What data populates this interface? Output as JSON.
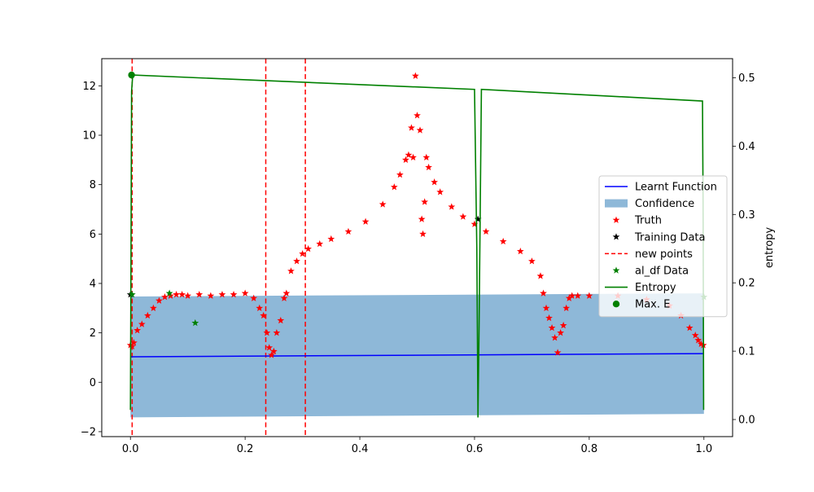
{
  "chart_data": {
    "type": "scatter",
    "title": "",
    "xlabel": "",
    "ylabel_left": "",
    "ylabel_right": "entropy",
    "xlim": [
      -0.05,
      1.05
    ],
    "ylim_left": [
      -2.2,
      13.1
    ],
    "ylim_right": [
      -0.025,
      0.528
    ],
    "x_ticks": [
      0.0,
      0.2,
      0.4,
      0.6,
      0.8,
      1.0
    ],
    "x_tick_labels": [
      "0.0",
      "0.2",
      "0.4",
      "0.6",
      "0.8",
      "1.0"
    ],
    "y_left_ticks": [
      -2,
      0,
      2,
      4,
      6,
      8,
      10,
      12
    ],
    "y_left_tick_labels": [
      "−2",
      "0",
      "2",
      "4",
      "6",
      "8",
      "10",
      "12"
    ],
    "y_right_ticks": [
      0.0,
      0.1,
      0.2,
      0.3,
      0.4,
      0.5
    ],
    "y_right_tick_labels": [
      "0.0",
      "0.1",
      "0.2",
      "0.3",
      "0.4",
      "0.5"
    ],
    "grid": false,
    "legend_position": "center-right",
    "colors": {
      "learnt": "#0000ff",
      "confidence": "#8eb8d8",
      "truth": "#ff0000",
      "training": "#000000",
      "new_points": "#ff0000",
      "al_df": "#008000",
      "entropy": "#008000",
      "max_e": "#008000"
    },
    "legend": [
      {
        "key": "learnt",
        "label": "Learnt Function",
        "marker": "line"
      },
      {
        "key": "confidence",
        "label": "Confidence",
        "marker": "patch"
      },
      {
        "key": "truth",
        "label": "Truth",
        "marker": "star"
      },
      {
        "key": "training",
        "label": "Training Data",
        "marker": "star"
      },
      {
        "key": "new_points",
        "label": "new points",
        "marker": "dashed"
      },
      {
        "key": "al_df",
        "label": "al_df Data",
        "marker": "star"
      },
      {
        "key": "entropy",
        "label": "Entropy",
        "marker": "line"
      },
      {
        "key": "max_e",
        "label": "Max. E",
        "marker": "dot"
      }
    ],
    "learnt_function": {
      "x": [
        0.0,
        1.0
      ],
      "y": [
        1.03,
        1.16
      ]
    },
    "confidence_band": {
      "x": [
        0.0,
        1.0
      ],
      "upper": [
        3.47,
        3.6
      ],
      "lower": [
        -1.42,
        -1.28
      ]
    },
    "truth": {
      "x": [
        0.0,
        0.003,
        0.006,
        0.012,
        0.02,
        0.03,
        0.04,
        0.05,
        0.06,
        0.07,
        0.08,
        0.09,
        0.1,
        0.12,
        0.14,
        0.16,
        0.18,
        0.2,
        0.215,
        0.225,
        0.232,
        0.238,
        0.242,
        0.246,
        0.25,
        0.255,
        0.262,
        0.268,
        0.272,
        0.28,
        0.29,
        0.3,
        0.31,
        0.33,
        0.35,
        0.38,
        0.41,
        0.44,
        0.46,
        0.47,
        0.48,
        0.485,
        0.49,
        0.493,
        0.497,
        0.5,
        0.505,
        0.508,
        0.51,
        0.513,
        0.516,
        0.52,
        0.53,
        0.54,
        0.56,
        0.58,
        0.6,
        0.62,
        0.65,
        0.68,
        0.7,
        0.715,
        0.72,
        0.725,
        0.73,
        0.735,
        0.74,
        0.745,
        0.75,
        0.755,
        0.76,
        0.765,
        0.77,
        0.78,
        0.8,
        0.85,
        0.9,
        0.94,
        0.96,
        0.975,
        0.985,
        0.99,
        0.995,
        0.999
      ],
      "y": [
        1.5,
        1.45,
        1.6,
        2.1,
        2.35,
        2.7,
        3.0,
        3.3,
        3.45,
        3.5,
        3.55,
        3.55,
        3.5,
        3.55,
        3.5,
        3.55,
        3.55,
        3.6,
        3.4,
        3.0,
        2.7,
        2.0,
        1.4,
        1.1,
        1.25,
        2.0,
        2.5,
        3.4,
        3.6,
        4.5,
        4.9,
        5.2,
        5.4,
        5.6,
        5.8,
        6.1,
        6.5,
        7.2,
        7.9,
        8.4,
        9.0,
        9.2,
        10.3,
        9.1,
        12.4,
        10.8,
        10.2,
        6.6,
        6.0,
        7.3,
        9.1,
        8.7,
        8.1,
        7.7,
        7.1,
        6.7,
        6.4,
        6.1,
        5.7,
        5.3,
        4.9,
        4.3,
        3.6,
        3.0,
        2.6,
        2.2,
        1.8,
        1.2,
        2.0,
        2.3,
        3.0,
        3.4,
        3.5,
        3.5,
        3.5,
        3.5,
        3.35,
        3.1,
        2.7,
        2.2,
        1.9,
        1.7,
        1.55,
        1.5
      ]
    },
    "training_data": {
      "x": [
        0.0,
        0.606
      ],
      "y": [
        3.55,
        6.6
      ]
    },
    "new_points": {
      "x": [
        0.003,
        0.236,
        0.305
      ]
    },
    "al_df_data": {
      "x": [
        0.003,
        0.068,
        0.113,
        1.0
      ],
      "y": [
        3.55,
        3.6,
        2.4,
        3.45
      ]
    },
    "entropy": {
      "x": [
        0.0,
        0.002,
        0.004,
        0.6,
        0.604,
        0.606,
        0.608,
        0.612,
        0.9975,
        0.9985,
        0.9995
      ],
      "y": [
        0.014,
        0.48,
        0.504,
        0.483,
        0.25,
        0.003,
        0.14,
        0.483,
        0.466,
        0.32,
        0.014
      ]
    },
    "max_e": {
      "x": [
        0.002
      ],
      "y": [
        0.504
      ]
    }
  }
}
